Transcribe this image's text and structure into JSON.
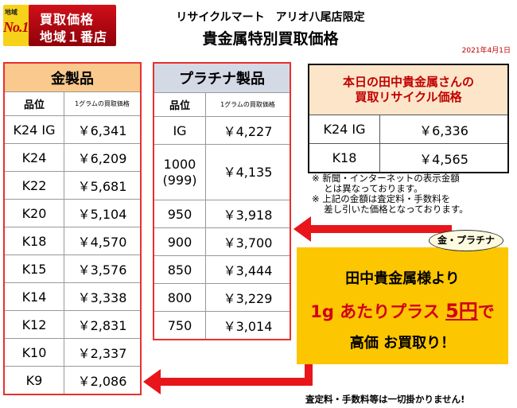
{
  "badge": {
    "area_small": "地域",
    "no1": "No.1",
    "line1": "買取価格",
    "line2": "地域１番店"
  },
  "header": {
    "subtitle": "リサイクルマート　アリオ八尾店限定",
    "title": "貴金属特別買取価格",
    "date": "2021年4月1日"
  },
  "gold_table": {
    "title": "金製品",
    "col_grade": "品位",
    "col_price": "1グラムの買取価格",
    "rows": [
      {
        "grade": "K24 IG",
        "price": "￥6,341"
      },
      {
        "grade": "K24",
        "price": "￥6,209"
      },
      {
        "grade": "K22",
        "price": "￥5,681"
      },
      {
        "grade": "K20",
        "price": "￥5,104"
      },
      {
        "grade": "K18",
        "price": "￥4,570"
      },
      {
        "grade": "K15",
        "price": "￥3,576"
      },
      {
        "grade": "K14",
        "price": "￥3,338"
      },
      {
        "grade": "K12",
        "price": "￥2,831"
      },
      {
        "grade": "K10",
        "price": "￥2,337"
      },
      {
        "grade": "K9",
        "price": "￥2,086"
      }
    ]
  },
  "platinum_table": {
    "title": "プラチナ製品",
    "col_grade": "品位",
    "col_price": "1グラムの買取価格",
    "rows": [
      {
        "grade": "IG",
        "price": "￥4,227"
      },
      {
        "grade": "1000",
        "grade2": "(999)",
        "price": "￥4,135"
      },
      {
        "grade": "950",
        "price": "￥3,918"
      },
      {
        "grade": "900",
        "price": "￥3,700"
      },
      {
        "grade": "850",
        "price": "￥3,444"
      },
      {
        "grade": "800",
        "price": "￥3,229"
      },
      {
        "grade": "750",
        "price": "￥3,014"
      }
    ]
  },
  "today_table": {
    "title_line1": "本日の田中貴金属さんの",
    "title_line2": "買取リサイクル価格",
    "rows": [
      {
        "grade": "K24 IG",
        "price": "￥6,336"
      },
      {
        "grade": "K18",
        "price": "￥4,565"
      }
    ]
  },
  "notes": [
    "※ 新聞・インターネットの表示金額",
    "　 とは異なっております。",
    "※ 上記の金額は査定料・手数料を",
    "　 差し引いた価格となっております。"
  ],
  "bubble": "金・プラチナ",
  "promo": {
    "line1": "田中貴金属様より",
    "line2_a": "1g あたりプラス ",
    "line2_b": "5円",
    "line2_c": "で",
    "line3": "高価 お買取り！"
  },
  "footer": "査定料・手数料等は一切掛かりません!",
  "colors": {
    "accent_red": "#e8151b",
    "promo_yellow": "#fcc600",
    "gold_header": "#f9c98e",
    "platinum_header": "#d4d9e6"
  }
}
